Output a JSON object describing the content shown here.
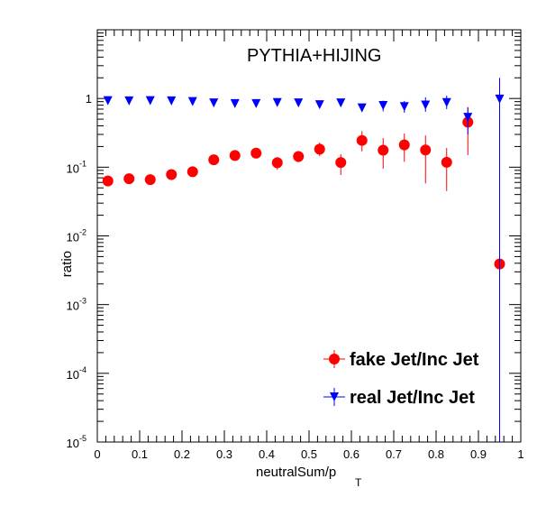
{
  "chart_data": {
    "type": "scatter",
    "title": "PYTHIA+HIJING",
    "xlabel": "neutralSum/p",
    "xlabel_sub": "T",
    "ylabel": "ratio",
    "xlim": [
      0,
      1
    ],
    "ylim": [
      1e-05,
      10
    ],
    "yscale": "log",
    "grid": false,
    "legend_position": "bottom-right",
    "x_ticks": [
      "0",
      "0.1",
      "0.2",
      "0.3",
      "0.4",
      "0.5",
      "0.6",
      "0.7",
      "0.8",
      "0.9",
      "1"
    ],
    "y_ticks": [
      {
        "base": "10",
        "exp": "-5",
        "value": 1e-05
      },
      {
        "base": "10",
        "exp": "-4",
        "value": 0.0001
      },
      {
        "base": "10",
        "exp": "-3",
        "value": 0.001
      },
      {
        "base": "10",
        "exp": "-2",
        "value": 0.01
      },
      {
        "base": "10",
        "exp": "-1",
        "value": 0.1
      },
      {
        "base": "1",
        "exp": "",
        "value": 1
      }
    ],
    "series": [
      {
        "name": "fake Jet/Inc Jet",
        "color": "#ff0000",
        "marker": "circle",
        "points": [
          {
            "x": 0.025,
            "y": 0.063,
            "lo": 0.057,
            "hi": 0.069
          },
          {
            "x": 0.075,
            "y": 0.068,
            "lo": 0.062,
            "hi": 0.074
          },
          {
            "x": 0.125,
            "y": 0.066,
            "lo": 0.06,
            "hi": 0.073
          },
          {
            "x": 0.175,
            "y": 0.078,
            "lo": 0.071,
            "hi": 0.086
          },
          {
            "x": 0.225,
            "y": 0.086,
            "lo": 0.078,
            "hi": 0.095
          },
          {
            "x": 0.275,
            "y": 0.128,
            "lo": 0.115,
            "hi": 0.142
          },
          {
            "x": 0.325,
            "y": 0.148,
            "lo": 0.132,
            "hi": 0.165
          },
          {
            "x": 0.375,
            "y": 0.16,
            "lo": 0.142,
            "hi": 0.178
          },
          {
            "x": 0.425,
            "y": 0.116,
            "lo": 0.092,
            "hi": 0.14
          },
          {
            "x": 0.475,
            "y": 0.143,
            "lo": 0.118,
            "hi": 0.172
          },
          {
            "x": 0.525,
            "y": 0.183,
            "lo": 0.145,
            "hi": 0.228
          },
          {
            "x": 0.575,
            "y": 0.117,
            "lo": 0.077,
            "hi": 0.155
          },
          {
            "x": 0.625,
            "y": 0.245,
            "lo": 0.17,
            "hi": 0.335
          },
          {
            "x": 0.675,
            "y": 0.177,
            "lo": 0.095,
            "hi": 0.265
          },
          {
            "x": 0.725,
            "y": 0.211,
            "lo": 0.12,
            "hi": 0.31
          },
          {
            "x": 0.775,
            "y": 0.178,
            "lo": 0.058,
            "hi": 0.29
          },
          {
            "x": 0.825,
            "y": 0.118,
            "lo": 0.045,
            "hi": 0.19
          },
          {
            "x": 0.875,
            "y": 0.452,
            "lo": 0.15,
            "hi": 0.75
          },
          {
            "x": 0.95,
            "y": 0.0039,
            "lo": 0.0039,
            "hi": 0.0039
          }
        ]
      },
      {
        "name": "real Jet/Inc Jet",
        "color": "#0000ff",
        "marker": "triangle-down",
        "points": [
          {
            "x": 0.025,
            "y": 0.93,
            "lo": 0.9,
            "hi": 0.96
          },
          {
            "x": 0.075,
            "y": 0.92,
            "lo": 0.89,
            "hi": 0.95
          },
          {
            "x": 0.125,
            "y": 0.93,
            "lo": 0.9,
            "hi": 0.96
          },
          {
            "x": 0.175,
            "y": 0.92,
            "lo": 0.89,
            "hi": 0.95
          },
          {
            "x": 0.225,
            "y": 0.9,
            "lo": 0.87,
            "hi": 0.93
          },
          {
            "x": 0.275,
            "y": 0.86,
            "lo": 0.83,
            "hi": 0.89
          },
          {
            "x": 0.325,
            "y": 0.84,
            "lo": 0.81,
            "hi": 0.87
          },
          {
            "x": 0.375,
            "y": 0.84,
            "lo": 0.81,
            "hi": 0.87
          },
          {
            "x": 0.425,
            "y": 0.87,
            "lo": 0.82,
            "hi": 0.92
          },
          {
            "x": 0.475,
            "y": 0.86,
            "lo": 0.81,
            "hi": 0.91
          },
          {
            "x": 0.525,
            "y": 0.81,
            "lo": 0.75,
            "hi": 0.87
          },
          {
            "x": 0.575,
            "y": 0.86,
            "lo": 0.79,
            "hi": 0.94
          },
          {
            "x": 0.625,
            "y": 0.73,
            "lo": 0.64,
            "hi": 0.82
          },
          {
            "x": 0.675,
            "y": 0.79,
            "lo": 0.65,
            "hi": 0.93
          },
          {
            "x": 0.725,
            "y": 0.76,
            "lo": 0.62,
            "hi": 0.92
          },
          {
            "x": 0.775,
            "y": 0.8,
            "lo": 0.64,
            "hi": 1.04
          },
          {
            "x": 0.825,
            "y": 0.87,
            "lo": 0.7,
            "hi": 1.1
          },
          {
            "x": 0.875,
            "y": 0.53,
            "lo": 0.3,
            "hi": 0.74
          },
          {
            "x": 0.95,
            "y": 0.98,
            "lo": 1e-05,
            "hi": 2.0
          }
        ]
      }
    ]
  }
}
